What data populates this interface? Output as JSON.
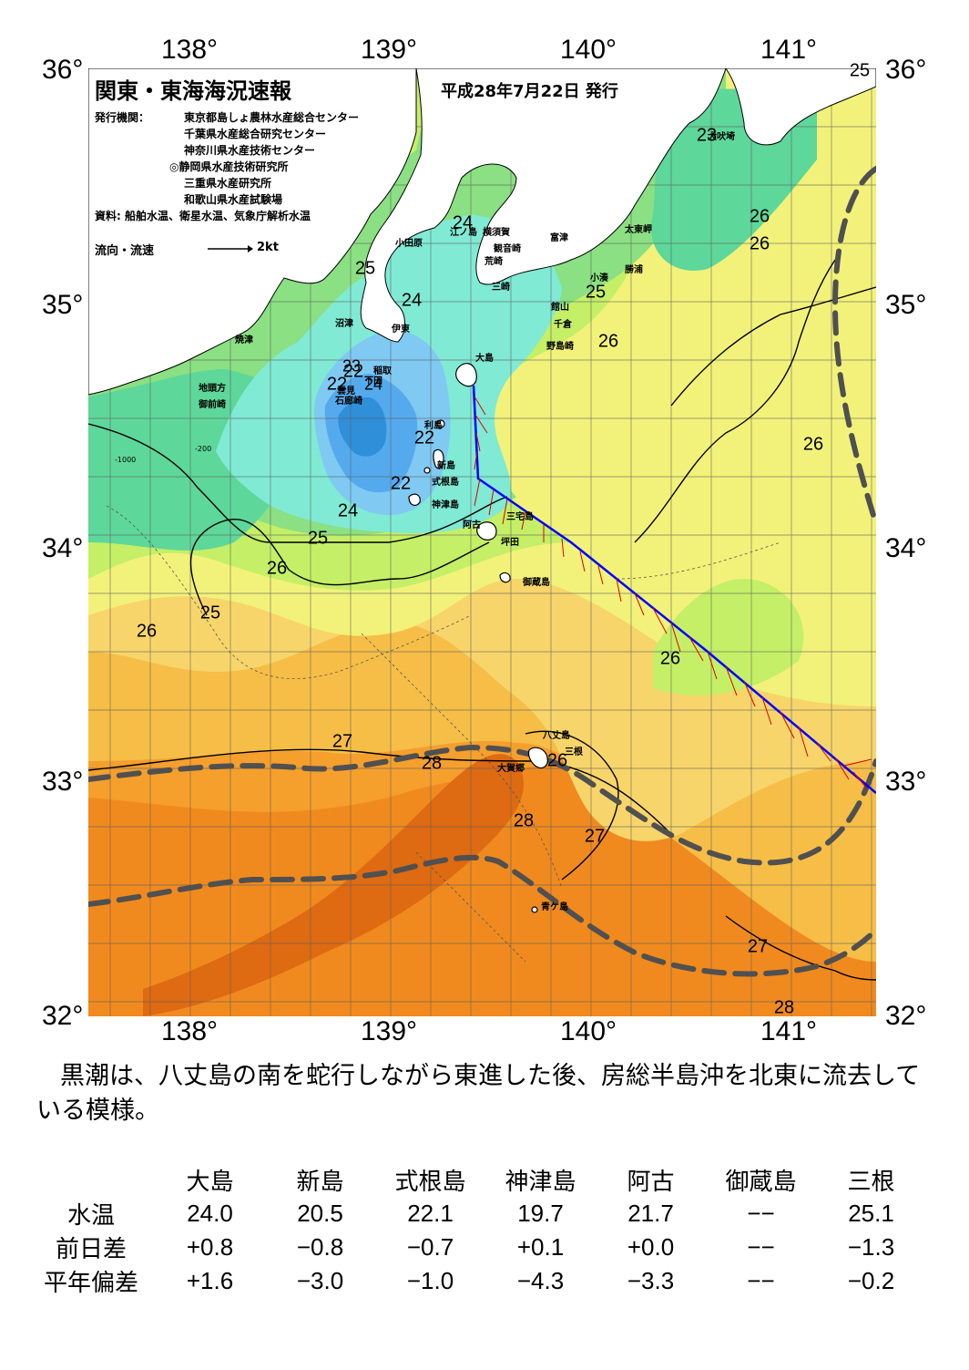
{
  "map": {
    "title": "関東・東海海況速報",
    "date": "平成28年7月22日 発行",
    "issuer_label": "発行機関：",
    "issuers": [
      "東京都島しょ農林水産総合センター",
      "千葉県水産総合研究センター",
      "神奈川県水産技術センター",
      "◎静岡県水産技術研究所",
      "三重県水産研究所",
      "和歌山県水産試験場"
    ],
    "source": "資料: 船舶水温、衛星水温、気象庁解析水温",
    "flow_legend": "流向・流速",
    "flow_scale": "2kt",
    "lon_labels": [
      "138°",
      "139°",
      "140°",
      "141°"
    ],
    "lat_labels": [
      "36°",
      "35°",
      "34°",
      "33°",
      "32°"
    ],
    "place_names": [
      {
        "name": "犬吠埼"
      },
      {
        "name": "横須賀"
      },
      {
        "name": "観音崎"
      },
      {
        "name": "荒崎"
      },
      {
        "name": "富津"
      },
      {
        "name": "三崎"
      },
      {
        "name": "太東岬"
      },
      {
        "name": "勝浦"
      },
      {
        "name": "小湊"
      },
      {
        "name": "館山"
      },
      {
        "name": "千倉"
      },
      {
        "name": "野島崎"
      },
      {
        "name": "小田原"
      },
      {
        "name": "江ノ島"
      },
      {
        "name": "沼津"
      },
      {
        "name": "伊東"
      },
      {
        "name": "焼津"
      },
      {
        "name": "稲取"
      },
      {
        "name": "下田"
      },
      {
        "name": "雲見"
      },
      {
        "name": "石廊崎"
      },
      {
        "name": "地頭方"
      },
      {
        "name": "御前崎"
      },
      {
        "name": "大島"
      },
      {
        "name": "利島"
      },
      {
        "name": "新島"
      },
      {
        "name": "式根島"
      },
      {
        "name": "神津島"
      },
      {
        "name": "三宅島"
      },
      {
        "name": "阿古"
      },
      {
        "name": "坪田"
      },
      {
        "name": "御蔵島"
      },
      {
        "name": "八丈島"
      },
      {
        "name": "三根"
      },
      {
        "name": "大賀郷"
      },
      {
        "name": "青ケ島"
      }
    ],
    "isotherm_labels": [
      "25",
      "23",
      "24",
      "24",
      "25",
      "24",
      "22",
      "22",
      "22",
      "23",
      "24",
      "25",
      "26",
      "25",
      "26",
      "26",
      "26",
      "25",
      "26",
      "26",
      "27",
      "28",
      "28",
      "27",
      "27",
      "28",
      "26"
    ],
    "depth_labels": [
      "-200",
      "-1000"
    ],
    "colors": {
      "t21": "#2f8fd8",
      "t22": "#55aaee",
      "t23": "#7fc9f2",
      "t24": "#80ead4",
      "t25": "#5ed79a",
      "t25b": "#8ae082",
      "t26": "#c4ef66",
      "t26b": "#f2f27a",
      "t27": "#f7d56a",
      "t27b": "#f6be47",
      "t28": "#f59f2d",
      "t28b": "#f08a1e",
      "t29": "#de6a12",
      "kuroshio": "#505050",
      "route": "#0000ff",
      "vector": "#dd0000"
    }
  },
  "comment": "黒潮は、八丈島の南を蛇行しながら東進した後、房総半島沖を北東に流去している模様。",
  "table": {
    "columns": [
      "大島",
      "新島",
      "式根島",
      "神津島",
      "阿古",
      "御蔵島",
      "三根"
    ],
    "rows": [
      {
        "label": "水温",
        "values": [
          "24.0",
          "20.5",
          "22.1",
          "19.7",
          "21.7",
          "−−",
          "25.1"
        ]
      },
      {
        "label": "前日差",
        "values": [
          "+0.8",
          "−0.8",
          "−0.7",
          "+0.1",
          "+0.0",
          "−−",
          "−1.3"
        ]
      },
      {
        "label": "平年偏差",
        "values": [
          "+1.6",
          "−3.0",
          "−1.0",
          "−4.3",
          "−3.3",
          "−−",
          "−0.2"
        ]
      }
    ]
  }
}
